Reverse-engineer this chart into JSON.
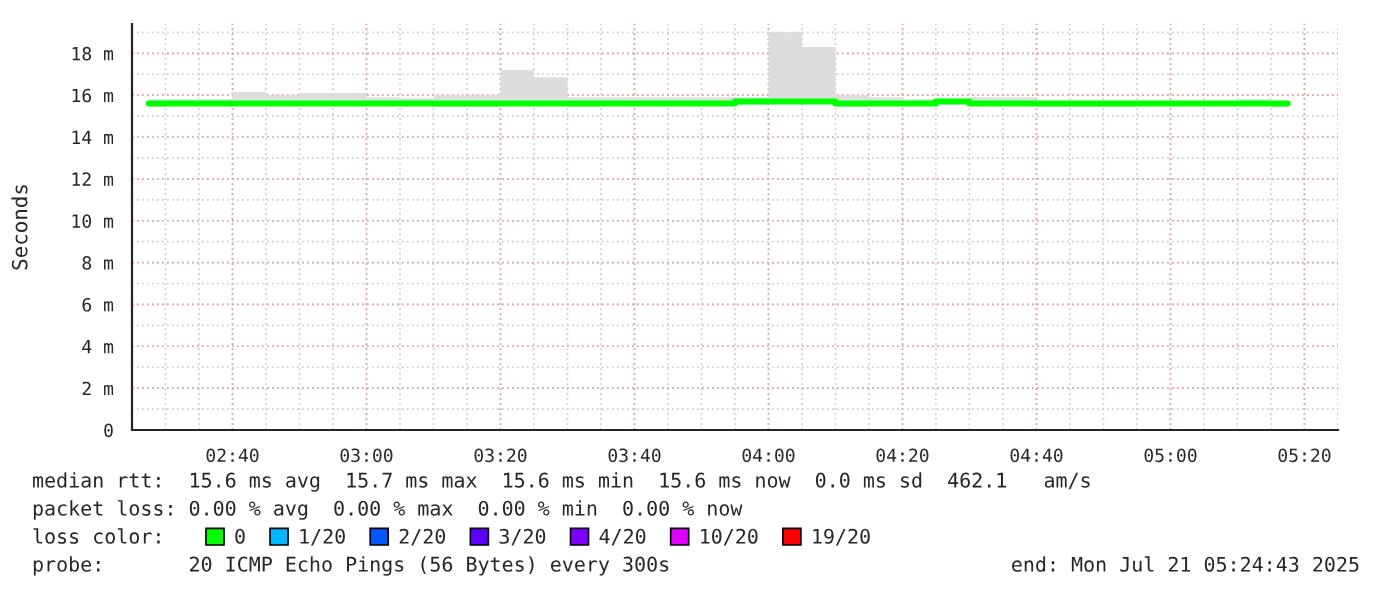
{
  "chart_data": {
    "type": "step",
    "ylabel": "Seconds",
    "x": [
      2.4583,
      2.5417,
      2.625,
      2.7083,
      2.7917,
      2.875,
      2.9583,
      3.0417,
      3.125,
      3.2083,
      3.2917,
      3.375,
      3.4583,
      3.5417,
      3.625,
      3.7083,
      3.7917,
      3.875,
      3.9583,
      4.0417,
      4.125,
      4.2083,
      4.2917,
      4.375,
      4.4583,
      4.5417,
      4.625,
      4.7083,
      4.7917,
      4.875,
      4.9583,
      5.0417,
      5.125,
      5.2083,
      5.2917
    ],
    "series": [
      {
        "name": "0",
        "color": "#00ff00",
        "values": [
          15.6,
          15.6,
          15.6,
          15.6,
          15.6,
          15.6,
          15.6,
          15.6,
          15.6,
          15.6,
          15.6,
          15.6,
          15.6,
          15.6,
          15.6,
          15.6,
          15.6,
          15.6,
          15.7,
          15.7,
          15.7,
          15.6,
          15.6,
          15.6,
          15.7,
          15.6,
          15.6,
          15.6,
          15.6,
          15.6,
          15.6,
          15.6,
          15.6,
          15.6,
          15.6
        ],
        "lower": [
          15.45,
          15.55,
          15.55,
          15.55,
          15.55,
          15.55,
          15.55,
          15.55,
          15.55,
          15.45,
          15.45,
          15.55,
          15.55,
          15.45,
          15.55,
          15.55,
          15.55,
          15.55,
          15.55,
          15.6,
          15.6,
          15.45,
          15.5,
          15.55,
          15.55,
          15.55,
          15.55,
          15.45,
          15.45,
          15.45,
          15.5,
          15.5,
          15.5,
          15.5,
          15.4
        ],
        "upper": [
          15.8,
          15.8,
          15.8,
          16.15,
          16.0,
          16.1,
          16.1,
          15.9,
          15.85,
          16.0,
          16.0,
          17.2,
          16.85,
          15.9,
          15.9,
          15.9,
          15.9,
          15.9,
          15.9,
          19.0,
          18.3,
          16.0,
          15.9,
          15.8,
          15.8,
          15.9,
          15.9,
          15.7,
          15.7,
          15.7,
          15.7,
          15.7,
          15.7,
          15.8,
          15.7
        ]
      },
      {
        "name": "1/20",
        "color": "#00b8ff",
        "values": [
          null,
          null,
          null,
          null,
          null,
          null,
          null,
          null,
          null,
          null,
          null,
          null,
          null,
          null,
          null,
          null,
          null,
          null,
          null,
          null,
          null,
          null,
          null,
          null,
          null,
          null,
          null,
          null,
          null,
          null,
          null,
          null,
          null,
          null,
          null
        ]
      },
      {
        "name": "2/20",
        "color": "#0059ff",
        "values": [
          null,
          null,
          null,
          null,
          null,
          null,
          null,
          null,
          null,
          null,
          null,
          null,
          null,
          null,
          null,
          null,
          null,
          null,
          null,
          null,
          null,
          null,
          null,
          null,
          null,
          null,
          null,
          null,
          null,
          null,
          null,
          null,
          null,
          null,
          null
        ]
      },
      {
        "name": "3/20",
        "color": "#5e00ff",
        "values": [
          null,
          null,
          null,
          null,
          null,
          null,
          null,
          null,
          null,
          null,
          null,
          null,
          null,
          null,
          null,
          null,
          null,
          null,
          null,
          null,
          null,
          null,
          null,
          null,
          null,
          null,
          null,
          null,
          null,
          null,
          null,
          null,
          null,
          null,
          null
        ]
      },
      {
        "name": "4/20",
        "color": "#7e00ff",
        "values": [
          null,
          null,
          null,
          null,
          null,
          null,
          null,
          null,
          null,
          null,
          null,
          null,
          null,
          null,
          null,
          null,
          null,
          null,
          null,
          null,
          null,
          null,
          null,
          null,
          null,
          null,
          null,
          null,
          null,
          null,
          null,
          null,
          null,
          null,
          null
        ]
      },
      {
        "name": "10/20",
        "color": "#dd00ff",
        "values": [
          null,
          null,
          null,
          null,
          null,
          null,
          null,
          null,
          null,
          null,
          null,
          null,
          null,
          null,
          null,
          null,
          null,
          null,
          null,
          null,
          null,
          null,
          null,
          null,
          null,
          null,
          null,
          null,
          null,
          null,
          null,
          null,
          null,
          null,
          null
        ]
      },
      {
        "name": "19/20",
        "color": "#ff0000",
        "values": [
          null,
          null,
          null,
          null,
          null,
          null,
          null,
          null,
          null,
          null,
          null,
          null,
          null,
          null,
          null,
          null,
          null,
          null,
          null,
          null,
          null,
          null,
          null,
          null,
          null,
          null,
          null,
          null,
          null,
          null,
          null,
          null,
          null,
          null,
          null
        ]
      }
    ],
    "legend": "bottom",
    "legend_title": "loss color:",
    "xlim": [
      2.4167,
      5.4167
    ],
    "xticks": [
      {
        "value": 2.6667,
        "label": "02:40"
      },
      {
        "value": 3,
        "label": "03:00"
      },
      {
        "value": 3.3333,
        "label": "03:20"
      },
      {
        "value": 3.6667,
        "label": "03:40"
      },
      {
        "value": 4,
        "label": "04:00"
      },
      {
        "value": 4.3333,
        "label": "04:20"
      },
      {
        "value": 4.6667,
        "label": "04:40"
      },
      {
        "value": 5,
        "label": "05:00"
      },
      {
        "value": 5.3333,
        "label": "05:20"
      }
    ],
    "ylim": [
      0,
      19.4
    ],
    "yticks": [
      0,
      {
        "value": 2,
        "label": "2 m"
      },
      {
        "value": 4,
        "label": "4 m"
      },
      {
        "value": 6,
        "label": "6 m"
      },
      {
        "value": 8,
        "label": "8 m"
      },
      {
        "value": 10,
        "label": "10 m"
      },
      {
        "value": 12,
        "label": "12 m"
      },
      {
        "value": 14,
        "label": "14 m"
      },
      {
        "value": 16,
        "label": "16 m"
      },
      {
        "value": 18,
        "label": "18 m"
      }
    ],
    "grid": true,
    "annotations": [
      "median rtt:  15.6 ms avg  15.7 ms max  15.6 ms min  15.6 ms now  0.0 ms sd  462.1   am/s",
      "packet loss: 0.00 % avg  0.00 % max  0.00 % min  0.00 % now",
      "probe:       20 ICMP Echo Pings (56 Bytes) every 300s",
      "end: Mon Jul 21 05:24:43 2025"
    ]
  }
}
